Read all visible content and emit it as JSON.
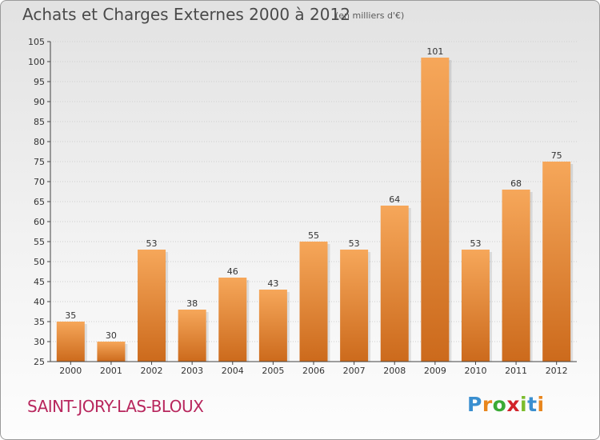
{
  "title": "Achats et Charges Externes 2000 à 2012",
  "unit_note": "(en milliers d'€)",
  "commune": "SAINT-JORY-LAS-BLOUX",
  "logo": {
    "letters": [
      "P",
      "r",
      "o",
      "x",
      "i",
      "t",
      "i"
    ],
    "colors": [
      "#3a8fd0",
      "#e8861d",
      "#3aaa35",
      "#d2232a",
      "#7bbc2c",
      "#3a8fd0",
      "#e8861d"
    ]
  },
  "colors": {
    "bar_top": "#f6a75a",
    "bar_bottom": "#cc6a1c",
    "axis": "#444444",
    "grid": "#cfcfcf"
  },
  "chart_data": {
    "type": "bar",
    "categories": [
      "2000",
      "2001",
      "2002",
      "2003",
      "2004",
      "2005",
      "2006",
      "2007",
      "2008",
      "2009",
      "2010",
      "2011",
      "2012"
    ],
    "values": [
      35,
      30,
      53,
      38,
      46,
      43,
      55,
      53,
      64,
      101,
      53,
      68,
      75
    ],
    "ylim": [
      25,
      105
    ],
    "yticks": [
      25,
      30,
      35,
      40,
      45,
      50,
      55,
      60,
      65,
      70,
      75,
      80,
      85,
      90,
      95,
      100,
      105
    ],
    "grid": true,
    "data_labels": true
  }
}
